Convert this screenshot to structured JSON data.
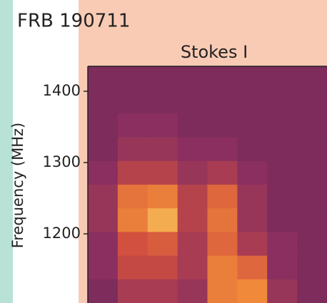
{
  "chart_data": {
    "type": "heatmap",
    "title": "FRB 190711",
    "subtitle": "Stokes I",
    "y_label": "Frequency (MHz)",
    "ylim": [
      1103,
      1435
    ],
    "yticks": [
      1200,
      1300,
      1400
    ],
    "colors": [
      "#4a1f4f",
      "#8a2f5f",
      "#d2503f",
      "#f08a3a",
      "#fbe070"
    ],
    "values": [
      [
        0.2,
        0.2,
        0.2,
        0.2,
        0.2,
        0.2,
        0.2,
        0.2
      ],
      [
        0.2,
        0.2,
        0.2,
        0.2,
        0.2,
        0.2,
        0.2,
        0.2
      ],
      [
        0.2,
        0.25,
        0.25,
        0.2,
        0.2,
        0.2,
        0.2,
        0.2
      ],
      [
        0.2,
        0.3,
        0.3,
        0.25,
        0.25,
        0.2,
        0.2,
        0.2
      ],
      [
        0.25,
        0.4,
        0.4,
        0.3,
        0.35,
        0.25,
        0.2,
        0.2
      ],
      [
        0.3,
        0.65,
        0.7,
        0.4,
        0.6,
        0.3,
        0.2,
        0.2
      ],
      [
        0.3,
        0.7,
        0.85,
        0.4,
        0.65,
        0.3,
        0.2,
        0.2
      ],
      [
        0.25,
        0.5,
        0.55,
        0.35,
        0.6,
        0.35,
        0.25,
        0.2
      ],
      [
        0.25,
        0.45,
        0.45,
        0.35,
        0.7,
        0.6,
        0.25,
        0.2
      ],
      [
        0.2,
        0.35,
        0.35,
        0.3,
        0.7,
        0.75,
        0.3,
        0.2
      ]
    ]
  }
}
